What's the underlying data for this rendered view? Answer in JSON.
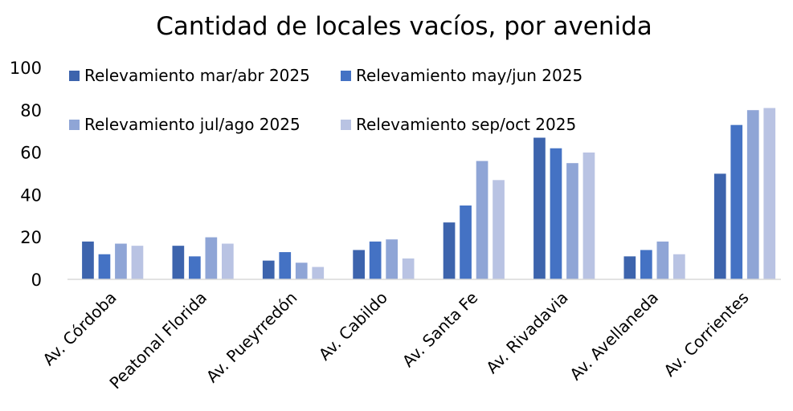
{
  "chart_data": {
    "type": "bar",
    "title": "Cantidad de locales vacíos, por avenida",
    "xlabel": "",
    "ylabel": "",
    "ylim": [
      0,
      100
    ],
    "yticks": [
      0,
      20,
      40,
      60,
      80,
      100
    ],
    "grid": false,
    "legend": "top-left",
    "categories": [
      "Av. Córdoba",
      "Peatonal Florida",
      "Av. Pueyrredón",
      "Av. Cabildo",
      "Av. Santa Fe",
      "Av. Rivadavia",
      "Av. Avellaneda",
      "Av. Corrientes"
    ],
    "series": [
      {
        "name": "Relevamiento mar/abr 2025",
        "color": "#3d64ad",
        "values": [
          18,
          16,
          9,
          14,
          27,
          67,
          11,
          50
        ]
      },
      {
        "name": "Relevamiento may/jun 2025",
        "color": "#4472c4",
        "values": [
          12,
          11,
          13,
          18,
          35,
          62,
          14,
          73
        ]
      },
      {
        "name": "Relevamiento jul/ago 2025",
        "color": "#8fa5d6",
        "values": [
          17,
          20,
          8,
          19,
          56,
          55,
          18,
          80
        ]
      },
      {
        "name": "Relevamiento sep/oct 2025",
        "color": "#b9c3e3",
        "values": [
          16,
          17,
          6,
          10,
          47,
          60,
          12,
          81
        ]
      }
    ]
  }
}
